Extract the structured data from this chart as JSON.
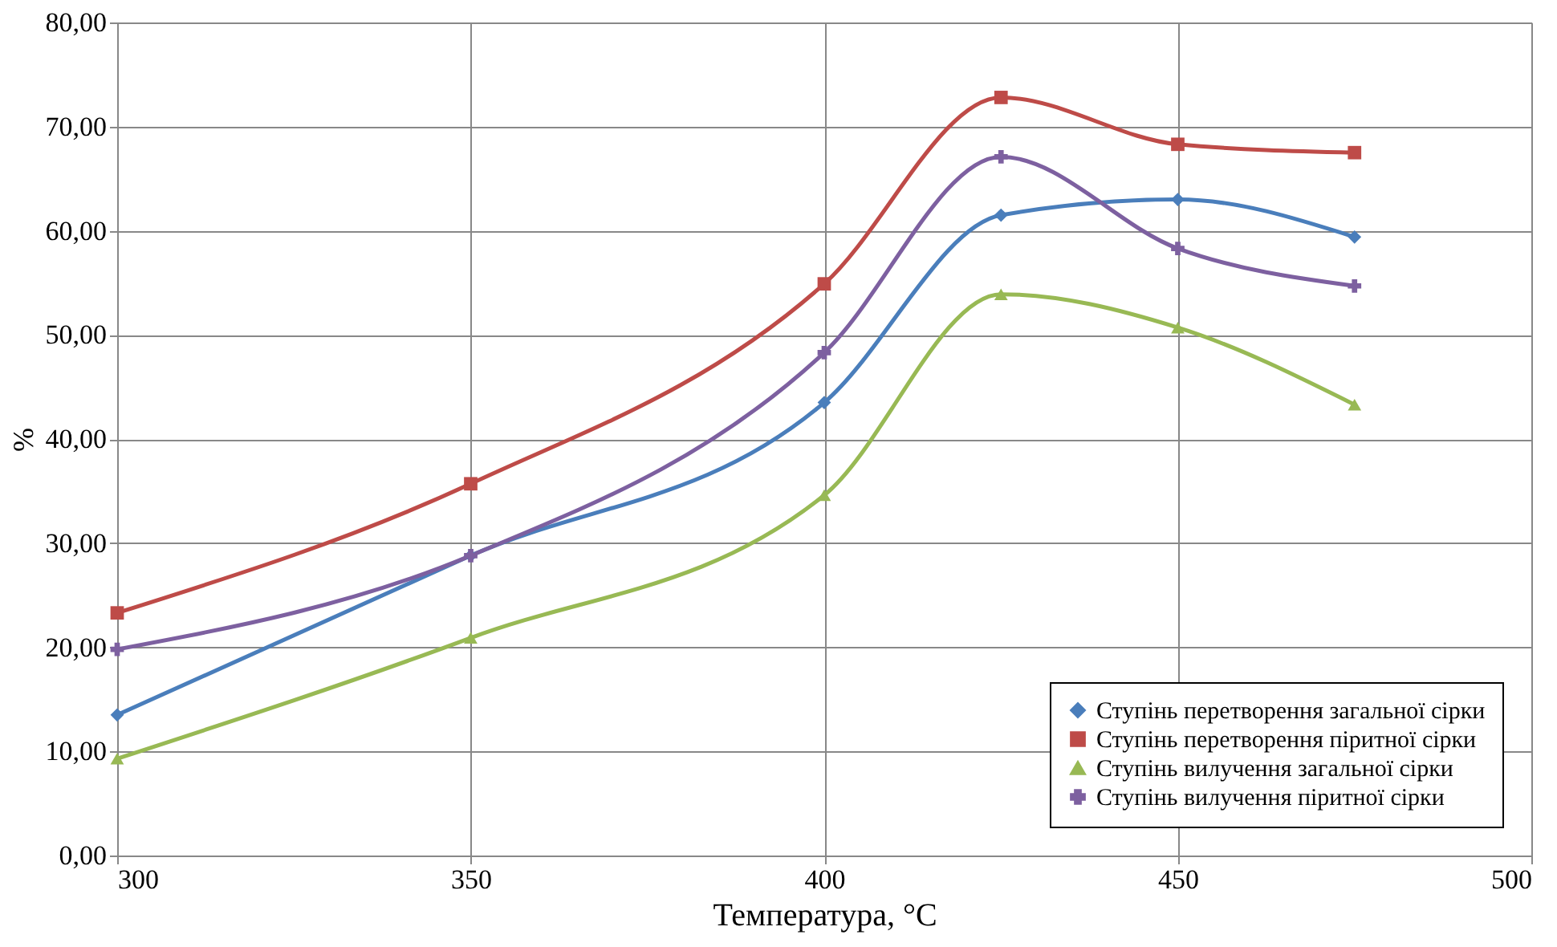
{
  "chart_data": {
    "type": "line",
    "xlabel": "Температура, °C",
    "ylabel": "%",
    "x": [
      300,
      350,
      400,
      425,
      450,
      475
    ],
    "xlim": [
      300,
      500
    ],
    "xticks": [
      300,
      350,
      400,
      450,
      500
    ],
    "ylim": [
      0,
      80
    ],
    "yticks": [
      {
        "value": 0,
        "label": "0,00"
      },
      {
        "value": 10,
        "label": "10,00"
      },
      {
        "value": 20,
        "label": "20,00"
      },
      {
        "value": 30,
        "label": "30,00"
      },
      {
        "value": 40,
        "label": "40,00"
      },
      {
        "value": 50,
        "label": "50,00"
      },
      {
        "value": 60,
        "label": "60,00"
      },
      {
        "value": 70,
        "label": "70,00"
      },
      {
        "value": 80,
        "label": "80,00"
      }
    ],
    "grid": true,
    "legend": "bottom right",
    "line_style": "solid",
    "series": [
      {
        "name": "Ступінь перетворення загальної сірки",
        "color": "#4a7ebb",
        "marker": "diamond",
        "values": [
          13.5,
          28.8,
          43.5,
          61.5,
          63.0,
          59.4
        ]
      },
      {
        "name": "Ступінь перетворення піритної сірки",
        "color": "#be4b48",
        "marker": "square",
        "values": [
          23.3,
          35.7,
          54.9,
          72.8,
          68.3,
          67.5
        ]
      },
      {
        "name": "Ступінь вилучення загальної сірки",
        "color": "#98b954",
        "marker": "triangle",
        "values": [
          9.3,
          20.9,
          34.6,
          53.9,
          50.7,
          43.3
        ]
      },
      {
        "name": "Ступінь вилучення піритної сірки",
        "color": "#7d60a0",
        "marker": "cross",
        "values": [
          19.8,
          28.8,
          48.3,
          67.1,
          58.3,
          54.7
        ]
      }
    ]
  }
}
